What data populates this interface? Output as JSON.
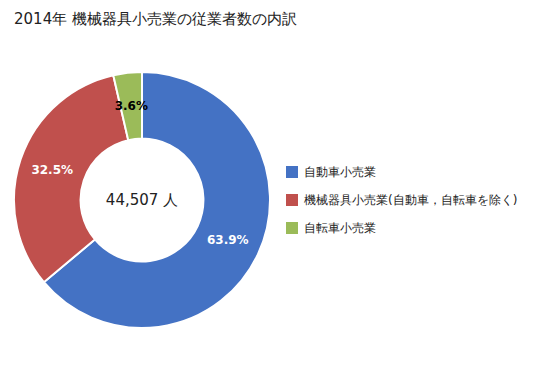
{
  "chart_data": {
    "type": "donut",
    "title": "2014年 機械器具小売業の従業者数の内訳",
    "annotation": "44,507 人",
    "categories": [
      "自動車小売業",
      "機械器具小売業(自動車，自転車を除く)",
      "自転車小売業"
    ],
    "values": [
      63.9,
      32.5,
      3.6
    ],
    "value_labels": [
      "63.9%",
      "32.5%",
      "3.6%"
    ],
    "colors": [
      "#4472C4",
      "#C0504D",
      "#9BBB59"
    ],
    "data_labels": true,
    "legend": "right"
  }
}
